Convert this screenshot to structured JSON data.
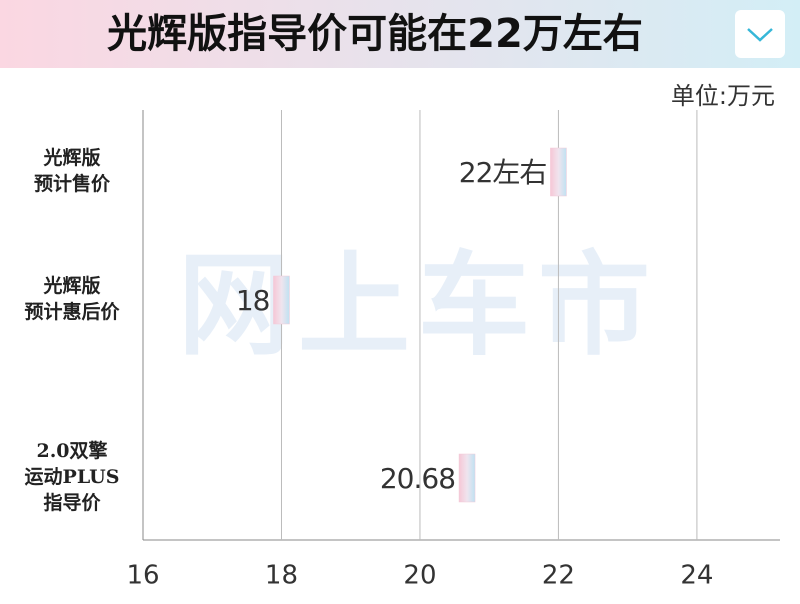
{
  "chart_data": {
    "type": "bar",
    "orientation": "horizontal",
    "title": "光辉版指导价可能在22万左右",
    "unit_label": "单位:万元",
    "watermark": "网上车市",
    "categories": [
      "光辉版\n预计售价",
      "光辉版\n预计惠后价",
      "2.0双擎\n运动PLUS\n指导价"
    ],
    "values": [
      22,
      18,
      20.68
    ],
    "value_labels": [
      "22左右",
      "18",
      "20.68"
    ],
    "color": "#f2c9d8",
    "xlim": [
      16,
      25.2
    ],
    "xticks": [
      16,
      18,
      20,
      22,
      24
    ],
    "grid": true
  }
}
